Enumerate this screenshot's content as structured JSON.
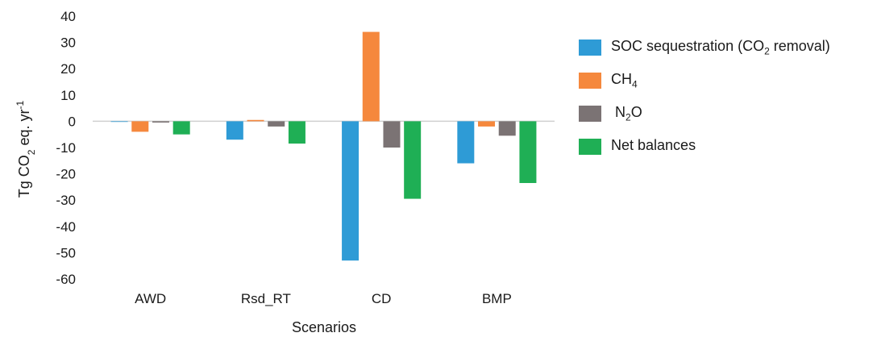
{
  "chart_data": {
    "type": "bar",
    "categories": [
      "AWD",
      "Rsd_RT",
      "CD",
      "BMP"
    ],
    "series": [
      {
        "name": "SOC sequestration (CO2 removal)",
        "color": "#2E9BD6",
        "values": [
          0,
          -7,
          -53,
          -16
        ]
      },
      {
        "name": "CH4",
        "color": "#F5883D",
        "values": [
          -4,
          0.5,
          34,
          -2
        ]
      },
      {
        "name": "N2O",
        "color": "#7B7374",
        "values": [
          -0.5,
          -2,
          -10,
          -5.5
        ]
      },
      {
        "name": "Net balances",
        "color": "#1FAF55",
        "values": [
          -5,
          -8.5,
          -29.5,
          -23.5
        ]
      }
    ],
    "yticks": [
      "40",
      "30",
      "20",
      "10",
      "0",
      "-10",
      "-20",
      "-30",
      "-40",
      "-50",
      "-60"
    ],
    "ylim": [
      -60,
      40
    ],
    "xlabel": "Scenarios",
    "ylabel": "Tg CO2 eq. yr-1",
    "grid": false,
    "legend_position": "right"
  },
  "legend": [
    {
      "text": "SOC sequestration (CO",
      "sub": "2",
      "tail": " removal)"
    },
    {
      "text": "CH",
      "sub": "4",
      "tail": ""
    },
    {
      "text": " N",
      "sub": "2",
      "tail": "O"
    },
    {
      "text": "Net balances",
      "sub": "",
      "tail": ""
    }
  ]
}
